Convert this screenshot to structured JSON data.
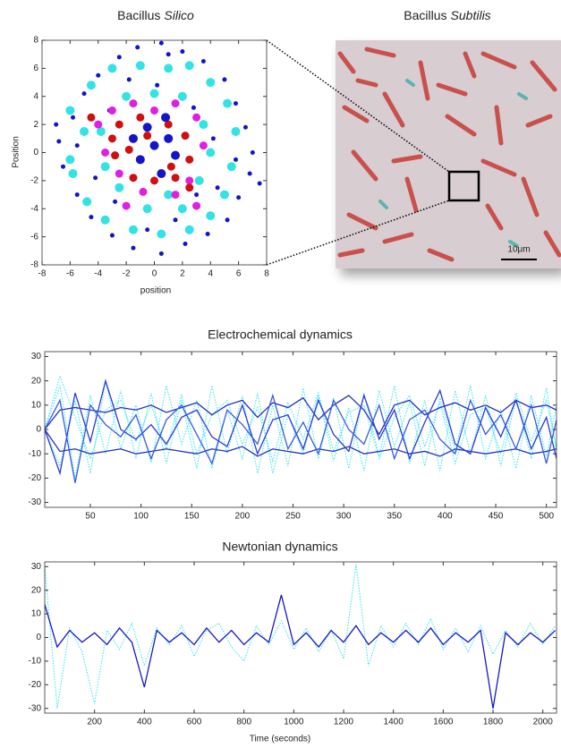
{
  "chart_data": [
    {
      "type": "scatter",
      "title": "Bacillus",
      "title_emphasis": "Silico",
      "x_label": "position",
      "y_label": "Position",
      "xlim": [
        -8,
        8
      ],
      "ylim": [
        -8,
        8
      ],
      "xticks": [
        -8,
        -6,
        -4,
        -2,
        0,
        2,
        4,
        6,
        8
      ],
      "yticks": [
        -8,
        -6,
        -4,
        -2,
        0,
        2,
        4,
        6,
        8
      ],
      "series": [
        {
          "color": "#1414c8",
          "x": [
            -6.5,
            -5.8,
            -5,
            -4,
            -2.5,
            -1.2,
            0.5,
            2,
            3.5,
            5,
            5.8,
            6.5,
            7,
            6.8,
            6,
            5.2,
            3.8,
            2.2,
            0.5,
            -1.5,
            -3,
            -4.5,
            -5.5,
            -6.8,
            -3.2,
            2.8,
            4.5,
            -4.2,
            1.5,
            -1.8,
            4.2,
            -2.8,
            0.2,
            7.5,
            -7,
            3,
            1,
            -0.5,
            5.8,
            -5.5
          ],
          "values": [
            -1,
            2.5,
            4.2,
            5.5,
            6.8,
            7.5,
            7.8,
            7.2,
            6.5,
            5.2,
            3.5,
            1.8,
            0,
            -1.5,
            -3.2,
            -4.8,
            -5.8,
            -6.5,
            -7.2,
            -6.8,
            -5.9,
            -4.6,
            -3,
            0.8,
            3,
            3.2,
            -2.5,
            -1.8,
            -4.8,
            5.2,
            1,
            -3.5,
            4.8,
            -2.2,
            2,
            -3,
            7,
            -5.5,
            -0.5,
            0.5
          ]
        },
        {
          "color": "#33e3e3",
          "x": [
            -6,
            -4.5,
            -3,
            -1,
            1,
            2.5,
            4,
            5.2,
            5.8,
            5.5,
            5,
            4,
            2.5,
            0.5,
            -1.5,
            -3.5,
            -4.8,
            -5.8,
            -6,
            -3.8,
            3.5,
            3.2,
            -2.5,
            -2,
            2,
            0,
            -0.5,
            2,
            -3.5,
            4,
            -5,
            1
          ],
          "values": [
            3,
            4.8,
            6,
            6.2,
            6,
            6.2,
            5,
            3.5,
            1.5,
            -1,
            -3,
            -4.5,
            -5.5,
            -5.8,
            -5.5,
            -4.8,
            -3.5,
            -1.5,
            -0.5,
            1.5,
            2,
            -2,
            -2.5,
            4,
            4,
            4.2,
            -4,
            -4,
            -1,
            0,
            1.5,
            -3
          ]
        },
        {
          "color": "#e01fe0",
          "x": [
            -3,
            -1.5,
            1.5,
            3,
            3.5,
            2.5,
            1.5,
            -0.8,
            -2.5,
            -3.5,
            -4,
            0,
            -2,
            3
          ],
          "values": [
            3,
            3.5,
            3.5,
            2.5,
            0.5,
            -2,
            -3,
            -2.8,
            -1.5,
            0,
            2,
            3,
            -3.8,
            -3.8
          ]
        },
        {
          "color": "#d01010",
          "x": [
            -4.5,
            -2.5,
            -1,
            1,
            2.2,
            2.5,
            1.5,
            0,
            -1.5,
            -2.8,
            -3,
            -1.8,
            1.2,
            -0.5,
            2.5
          ],
          "values": [
            2.5,
            2,
            2.5,
            2,
            1.2,
            -0.5,
            -1.8,
            -2,
            -1.8,
            -0.2,
            1,
            0.2,
            -1,
            1.2,
            -2.5
          ]
        },
        {
          "color": "#1414c8",
          "x": [
            0,
            -1,
            1,
            0.5,
            -0.5,
            1.5,
            -1.5,
            0.8
          ],
          "values": [
            0.5,
            -0.5,
            1,
            -1.5,
            1.8,
            -0.2,
            1,
            2.5
          ]
        }
      ]
    },
    {
      "type": "line",
      "title": "Electrochemical dynamics",
      "xlim": [
        5,
        510
      ],
      "ylim": [
        -32,
        32
      ],
      "xticks": [
        50,
        100,
        150,
        200,
        250,
        300,
        350,
        400,
        450,
        500
      ],
      "yticks": [
        -30,
        -20,
        -10,
        0,
        10,
        20,
        30
      ],
      "x": [
        5,
        20,
        35,
        50,
        65,
        80,
        95,
        110,
        125,
        140,
        155,
        170,
        185,
        200,
        215,
        230,
        245,
        260,
        275,
        290,
        305,
        320,
        335,
        350,
        365,
        380,
        395,
        410,
        425,
        440,
        455,
        470,
        485,
        500,
        510
      ],
      "series": [
        {
          "color": "#33e3f0",
          "style": "dotted",
          "values": [
            0,
            18,
            -20,
            14,
            -10,
            16,
            -12,
            15,
            -14,
            12,
            -16,
            18,
            -10,
            14,
            -18,
            10,
            -15,
            17,
            -12,
            13,
            -16,
            15,
            -11,
            18,
            -14,
            12,
            -17,
            16,
            -10,
            14,
            -15,
            13,
            -12,
            17,
            -9
          ]
        },
        {
          "color": "#33e3f0",
          "style": "dotted",
          "values": [
            0,
            -15,
            12,
            -18,
            20,
            -8,
            10,
            -14,
            18,
            -6,
            12,
            -16,
            8,
            -12,
            15,
            -18,
            6,
            -10,
            14,
            -13,
            9,
            -17,
            16,
            -7,
            11,
            -15,
            13,
            -9,
            18,
            -12,
            8,
            -16,
            14,
            -11,
            10
          ]
        },
        {
          "color": "#33e3f0",
          "style": "dotted",
          "values": [
            0,
            22,
            5,
            -12,
            8,
            12,
            -5,
            10,
            -8,
            14,
            -10,
            6,
            12,
            -6,
            9,
            -13,
            11,
            -4,
            15,
            -9,
            7,
            10,
            -12,
            5,
            14,
            -7,
            11,
            -14,
            6,
            9,
            -10,
            15,
            -5,
            12,
            -8
          ]
        },
        {
          "color": "#2030c0",
          "style": "solid",
          "values": [
            0,
            8,
            9,
            8,
            7,
            9,
            8,
            10,
            7,
            9,
            11,
            6,
            10,
            12,
            5,
            11,
            9,
            13,
            4,
            10,
            14,
            8,
            -2,
            10,
            12,
            6,
            9,
            11,
            8,
            10,
            7,
            12,
            9,
            10,
            8
          ]
        },
        {
          "color": "#2030c0",
          "style": "solid",
          "values": [
            0,
            -9,
            -8,
            -10,
            -9,
            -8,
            -10,
            -9,
            -8,
            -9,
            -10,
            -8,
            -9,
            -7,
            -11,
            -8,
            -9,
            -10,
            -8,
            -9,
            -7,
            -10,
            -9,
            -8,
            -10,
            -9,
            -11,
            -8,
            -9,
            -10,
            -9,
            -8,
            -10,
            -9,
            -8
          ]
        },
        {
          "color": "#2a3ad8",
          "style": "solid",
          "values": [
            0,
            -18,
            15,
            -5,
            20,
            0,
            -4,
            2,
            -6,
            5,
            8,
            -3,
            -7,
            10,
            -10,
            4,
            6,
            -8,
            12,
            -2,
            -9,
            14,
            -4,
            8,
            -12,
            3,
            16,
            -6,
            -10,
            9,
            -3,
            12,
            -8,
            5,
            -12
          ]
        },
        {
          "color": "#3a5ae0",
          "style": "solid",
          "values": [
            0,
            12,
            -22,
            10,
            2,
            -3,
            6,
            -12,
            4,
            10,
            -2,
            -14,
            8,
            2,
            -6,
            14,
            -8,
            3,
            -10,
            12,
            0,
            -6,
            10,
            -12,
            4,
            8,
            -4,
            -10,
            12,
            -2,
            6,
            -8,
            10,
            -14,
            4
          ]
        }
      ]
    },
    {
      "type": "line",
      "title": "Newtonian dynamics",
      "x_label": "Time (seconds)",
      "xlim": [
        0,
        2055
      ],
      "ylim": [
        -32,
        32
      ],
      "xticks": [
        200,
        400,
        600,
        800,
        1000,
        1200,
        1400,
        1600,
        1800,
        2000
      ],
      "yticks": [
        -30,
        -20,
        -10,
        0,
        10,
        20,
        30
      ],
      "x": [
        0,
        50,
        100,
        150,
        200,
        250,
        300,
        350,
        400,
        450,
        500,
        550,
        600,
        650,
        700,
        750,
        800,
        850,
        900,
        950,
        1000,
        1050,
        1100,
        1150,
        1200,
        1250,
        1300,
        1350,
        1400,
        1450,
        1500,
        1550,
        1600,
        1650,
        1700,
        1750,
        1800,
        1850,
        1900,
        1950,
        2000,
        2050
      ],
      "series": [
        {
          "color": "#33e3f0",
          "style": "dotted",
          "values": [
            30,
            -30,
            4,
            -6,
            -28,
            3,
            -5,
            6,
            -12,
            4,
            -3,
            5,
            -8,
            3,
            6,
            -4,
            -10,
            5,
            -3,
            7,
            -5,
            4,
            -6,
            3,
            -9,
            31,
            -12,
            5,
            -4,
            6,
            -3,
            8,
            -5,
            4,
            -6,
            5,
            -7,
            3,
            -4,
            6,
            -3,
            5
          ]
        },
        {
          "color": "#1818c8",
          "style": "solid",
          "values": [
            14,
            -4,
            3,
            -2,
            2,
            -3,
            4,
            -2,
            -21,
            3,
            -2,
            2,
            -3,
            4,
            -2,
            3,
            -3,
            2,
            -2,
            18,
            -3,
            2,
            -4,
            3,
            -2,
            5,
            -3,
            2,
            -2,
            3,
            -2,
            4,
            -3,
            2,
            -2,
            3,
            -30,
            2,
            -3,
            2,
            -2,
            3
          ]
        }
      ]
    }
  ],
  "image_panel": {
    "title": "Bacillus",
    "title_emphasis": "Subtilis",
    "scale_label": "10μm"
  }
}
